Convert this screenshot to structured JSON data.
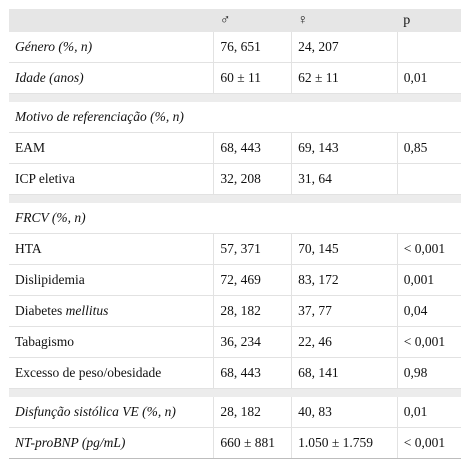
{
  "header": {
    "col1": "",
    "col2": "♂",
    "col3": "♀",
    "col4": "p"
  },
  "rows": {
    "genero": {
      "label": "Género (%, n)",
      "m": "76, 651",
      "f": "24, 207",
      "p": ""
    },
    "idade": {
      "label": "Idade (anos)",
      "m": "60 ± 11",
      "f": "62 ± 11",
      "p": "0,01"
    },
    "motivo": {
      "label": "Motivo de referenciação (%, n)"
    },
    "eam": {
      "label": "EAM",
      "m": "68, 443",
      "f": "69, 143",
      "p": "0,85"
    },
    "icp": {
      "label": "ICP eletiva",
      "m": "32, 208",
      "f": "31, 64",
      "p": ""
    },
    "frcv": {
      "label": "FRCV (%, n)"
    },
    "hta": {
      "label": "HTA",
      "m": "57, 371",
      "f": "70, 145",
      "p": "< 0,001"
    },
    "disl": {
      "label": "Dislipidemia",
      "m": "72, 469",
      "f": "83, 172",
      "p": "0,001"
    },
    "diab": {
      "label": "Diabetes ",
      "label_em": "mellitus",
      "m": "28, 182",
      "f": "37, 77",
      "p": "0,04"
    },
    "tab": {
      "label": "Tabagismo",
      "m": "36, 234",
      "f": "22, 46",
      "p": "< 0,001"
    },
    "peso": {
      "label": "Excesso de peso/obesidade",
      "m": "68, 443",
      "f": "68, 141",
      "p": "0,98"
    },
    "disf": {
      "label": "Disfunção sistólica VE (%, n)",
      "m": "28, 182",
      "f": "40, 83",
      "p": "0,01"
    },
    "ntpro": {
      "label": "NT-proBNP (pg/mL)",
      "m": "660 ± 881",
      "f": "1.050 ± 1.759",
      "p": "< 0,001"
    }
  }
}
